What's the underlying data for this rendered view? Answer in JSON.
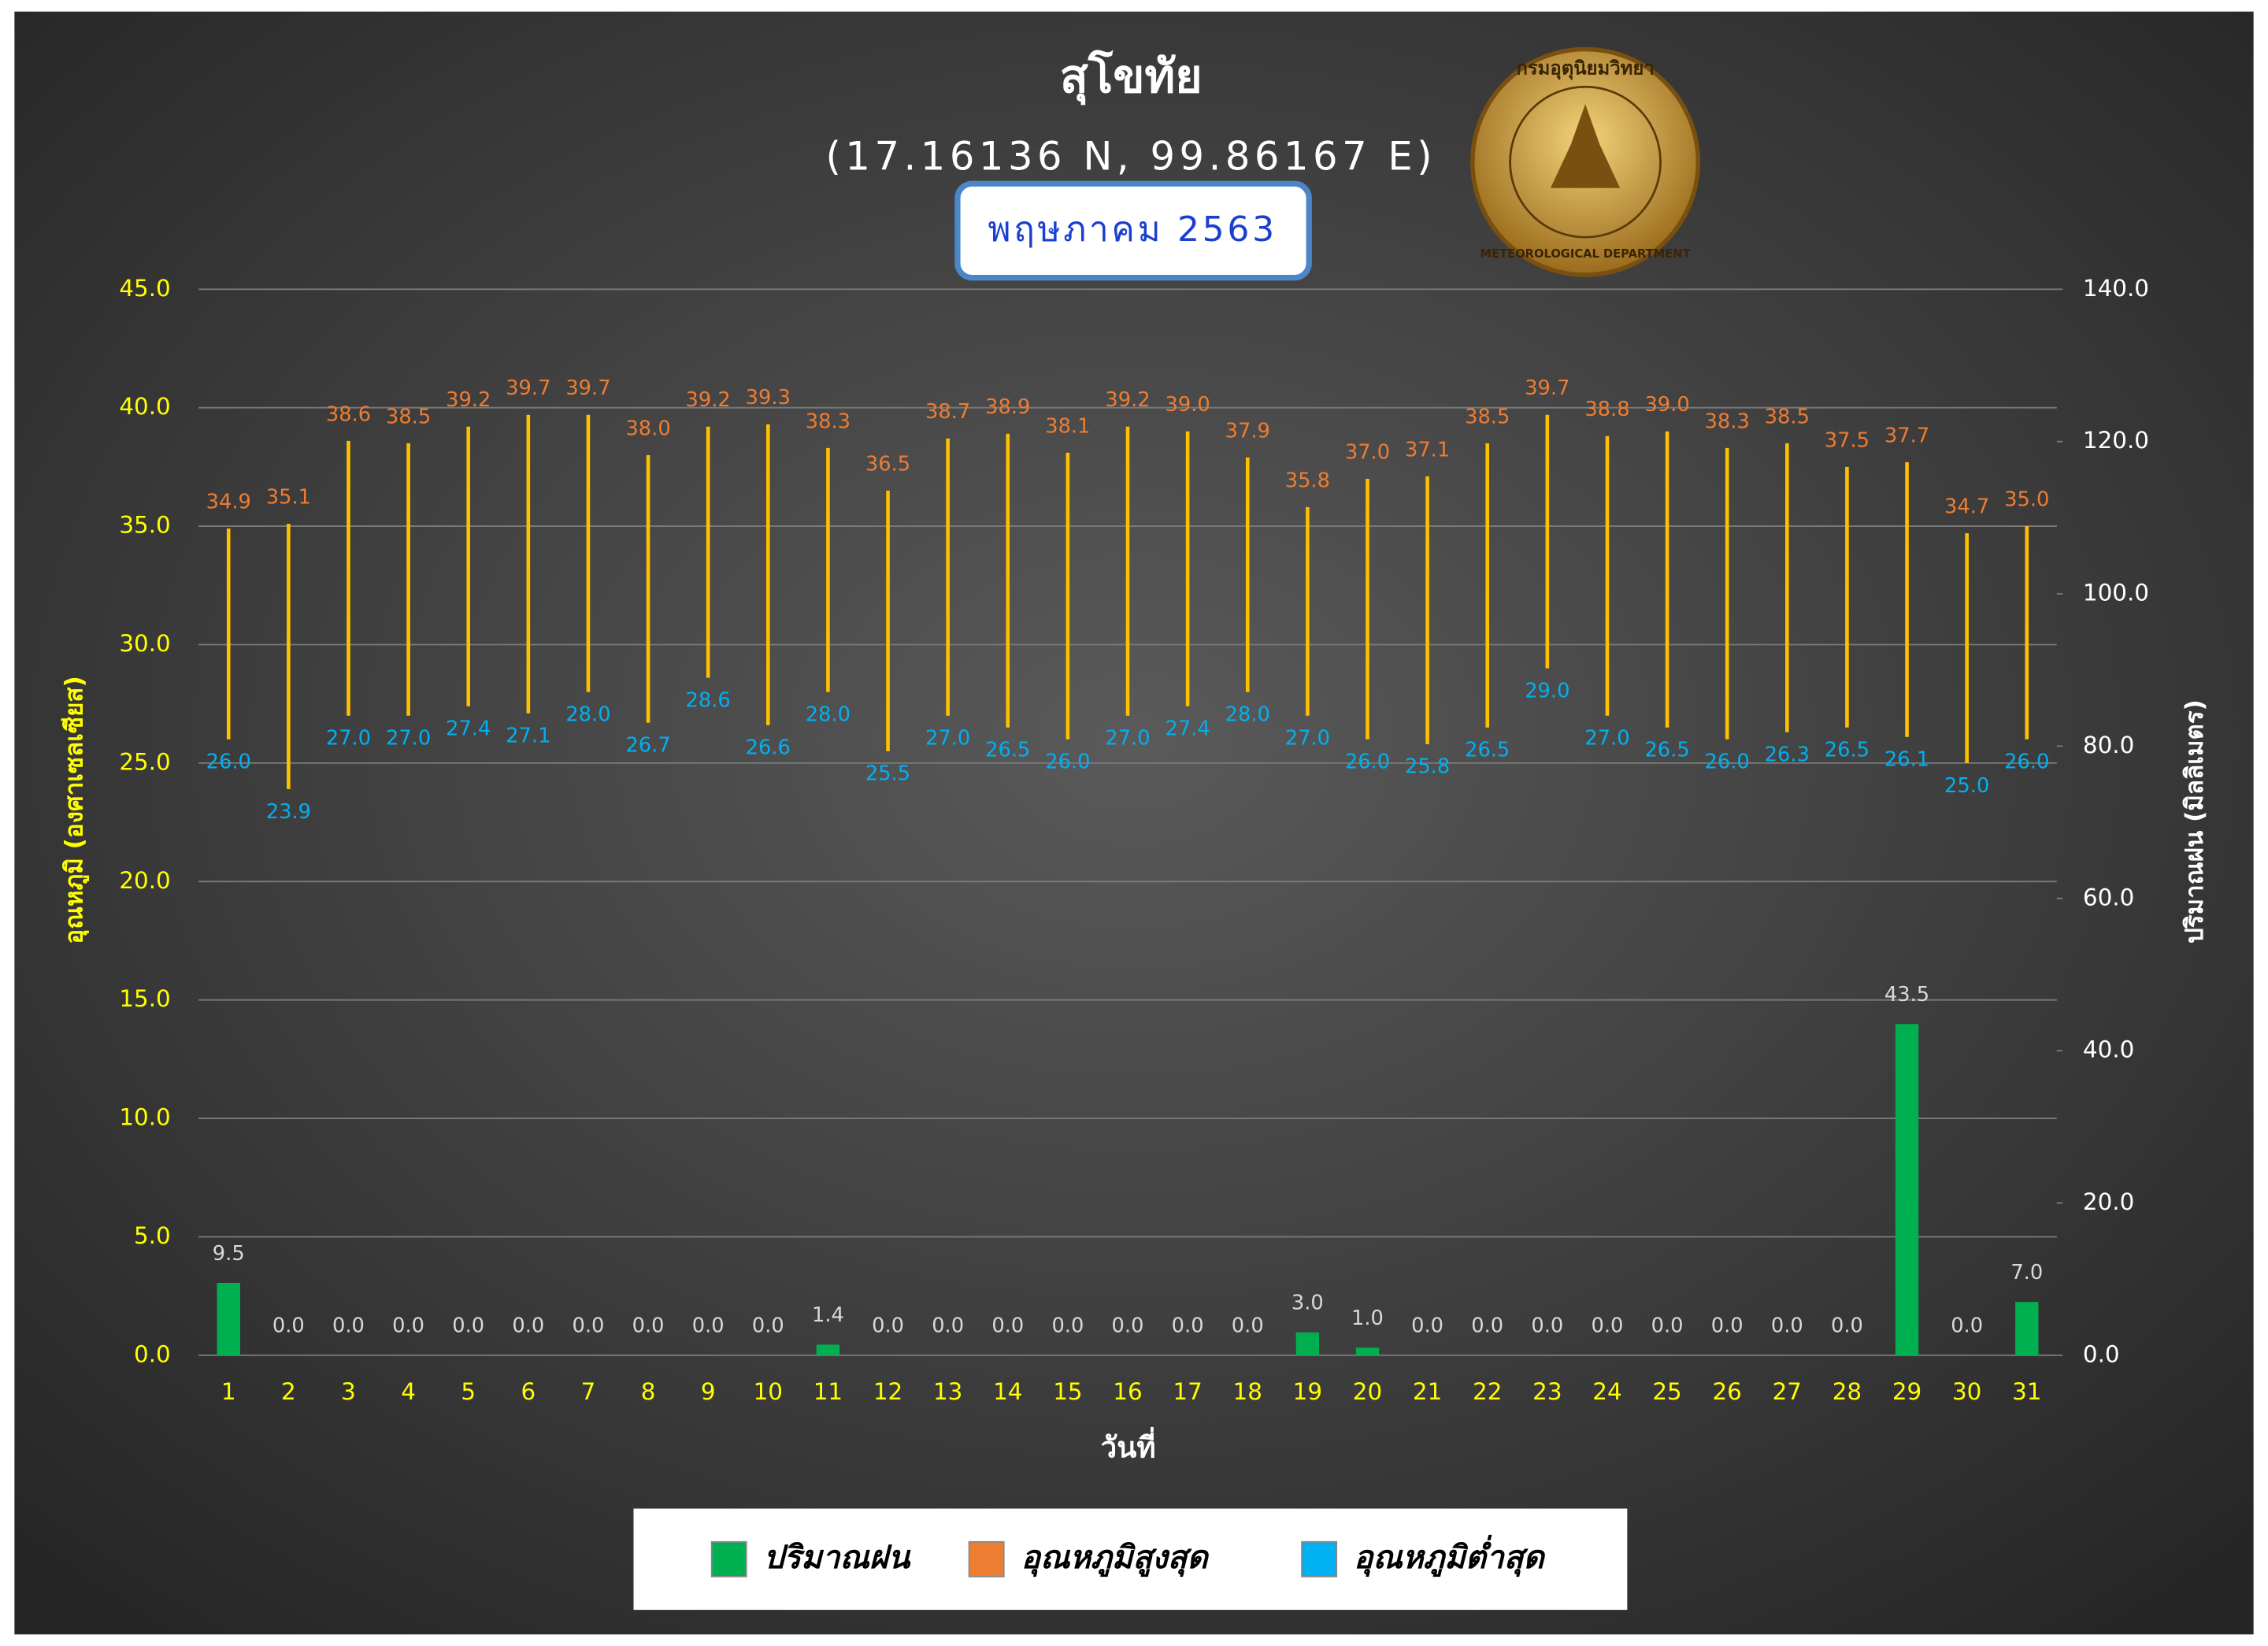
{
  "chart_data": {
    "type": "combo",
    "title": "สุโขทัย",
    "subtitle": "(17.16136 N, 99.86167 E)",
    "period": "พฤษภาคม 2563",
    "annotations": [
      "กรมอุตุนิยมวิทยา",
      "METEOROLOGICAL DEPARTMENT"
    ],
    "x_label": "วันที่",
    "y_label": "อุณหภูมิ (องศาเซลเซียส)",
    "y2_label": "ปริมาณฝน (มิลลิเมตร)",
    "categories": [
      "1",
      "2",
      "3",
      "4",
      "5",
      "6",
      "7",
      "8",
      "9",
      "10",
      "11",
      "12",
      "13",
      "14",
      "15",
      "16",
      "17",
      "18",
      "19",
      "20",
      "21",
      "22",
      "23",
      "24",
      "25",
      "26",
      "27",
      "28",
      "29",
      "30",
      "31"
    ],
    "hilo_color": "#ffc000",
    "series": [
      {
        "name": "ปริมาณฝน",
        "color": "#00b050",
        "axis": "y2",
        "values": [
          9.5,
          0,
          0,
          0,
          0,
          0,
          0,
          0,
          0,
          0,
          1.4,
          0,
          0,
          0,
          0,
          0,
          0,
          0,
          3.0,
          1.0,
          0,
          0,
          0,
          0,
          0,
          0,
          0,
          0,
          43.5,
          0,
          7.0
        ],
        "value_labels": [
          "9.5",
          "0.0",
          "0.0",
          "0.0",
          "0.0",
          "0.0",
          "0.0",
          "0.0",
          "0.0",
          "0.0",
          "1.4",
          "0.0",
          "0.0",
          "0.0",
          "0.0",
          "0.0",
          "0.0",
          "0.0",
          "3.0",
          "1.0",
          "0.0",
          "0.0",
          "0.0",
          "0.0",
          "0.0",
          "0.0",
          "0.0",
          "0.0",
          "43.5",
          "0.0",
          "7.0"
        ]
      },
      {
        "name": "อุณหภูมิสูงสุด",
        "color": "#ed7d31",
        "values": [
          34.9,
          35.1,
          38.6,
          38.5,
          39.2,
          39.7,
          39.7,
          38.0,
          39.2,
          39.3,
          38.3,
          36.5,
          38.7,
          38.9,
          38.1,
          39.2,
          39.0,
          37.9,
          35.8,
          37.0,
          37.1,
          38.5,
          39.7,
          38.8,
          39.0,
          38.3,
          38.5,
          37.5,
          37.7,
          34.7,
          35.0
        ],
        "value_labels": [
          "34.9",
          "35.1",
          "38.6",
          "38.5",
          "39.2",
          "39.7",
          "39.7",
          "38.0",
          "39.2",
          "39.3",
          "38.3",
          "36.5",
          "38.7",
          "38.9",
          "38.1",
          "39.2",
          "39.0",
          "37.9",
          "35.8",
          "37.0",
          "37.1",
          "38.5",
          "39.7",
          "38.8",
          "39.0",
          "38.3",
          "38.5",
          "37.5",
          "37.7",
          "34.7",
          "35.0"
        ]
      },
      {
        "name": "อุณหภูมิต่ำสุด",
        "color": "#00b0f0",
        "values": [
          26.0,
          23.9,
          27.0,
          27.0,
          27.4,
          27.1,
          28.0,
          26.7,
          28.6,
          26.6,
          28.0,
          25.5,
          27.0,
          26.5,
          26.0,
          27.0,
          27.4,
          28.0,
          27.0,
          26.0,
          25.8,
          26.5,
          29.0,
          27.0,
          26.5,
          26.0,
          26.3,
          26.5,
          26.1,
          25.0,
          26.0
        ],
        "value_labels": [
          "26.0",
          "23.9",
          "27.0",
          "27.0",
          "27.4",
          "27.1",
          "28.0",
          "26.7",
          "28.6",
          "26.6",
          "28.0",
          "25.5",
          "27.0",
          "26.5",
          "26.0",
          "27.0",
          "27.4",
          "28.0",
          "27.0",
          "26.0",
          "25.8",
          "26.5",
          "29.0",
          "27.0",
          "26.5",
          "26.0",
          "26.3",
          "26.5",
          "26.1",
          "25.0",
          "26.0"
        ]
      }
    ],
    "ylim": [
      0,
      45
    ],
    "yticks": [
      {
        "value": 0,
        "label": "0.0"
      },
      {
        "value": 5,
        "label": "5.0"
      },
      {
        "value": 10,
        "label": "10.0"
      },
      {
        "value": 15,
        "label": "15.0"
      },
      {
        "value": 20,
        "label": "20.0"
      },
      {
        "value": 25,
        "label": "25.0"
      },
      {
        "value": 30,
        "label": "30.0"
      },
      {
        "value": 35,
        "label": "35.0"
      },
      {
        "value": 40,
        "label": "40.0"
      },
      {
        "value": 45,
        "label": "45.0"
      }
    ],
    "y2lim": [
      0,
      140
    ],
    "y2ticks": [
      {
        "value": 0,
        "label": "0.0"
      },
      {
        "value": 20,
        "label": "20.0"
      },
      {
        "value": 40,
        "label": "40.0"
      },
      {
        "value": 60,
        "label": "60.0"
      },
      {
        "value": 80,
        "label": "80.0"
      },
      {
        "value": 100,
        "label": "100.0"
      },
      {
        "value": 120,
        "label": "120.0"
      },
      {
        "value": 140,
        "label": "140.0"
      }
    ],
    "grid": true
  }
}
